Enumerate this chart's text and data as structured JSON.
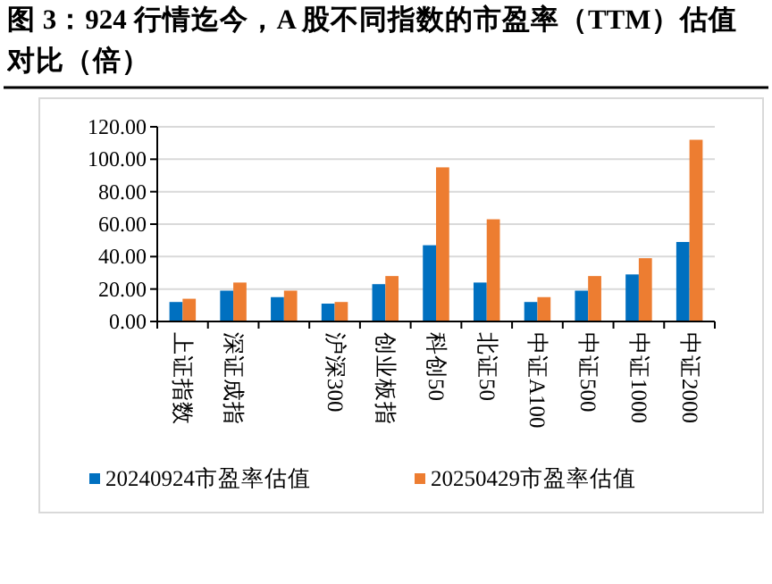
{
  "chart_data": {
    "type": "bar",
    "title": "图 3：924 行情迄今，A 股不同指数的市盈率（TTM）估值对比（倍）",
    "categories": [
      "上证指数",
      "深证成指",
      null,
      "沪深300",
      "创业板指",
      "科创50",
      "北证50",
      "中证A100",
      "中证500",
      "中证1000",
      "中证2000"
    ],
    "series": [
      {
        "name": "20240924市盈率估值",
        "color": "#0070c0",
        "values": [
          12,
          19,
          15,
          11,
          23,
          47,
          24,
          12,
          19,
          29,
          49
        ]
      },
      {
        "name": "20250429市盈率估值",
        "color": "#ed7d31",
        "values": [
          14,
          24,
          19,
          12,
          28,
          95,
          63,
          15,
          28,
          39,
          112
        ]
      }
    ],
    "ylim": [
      0,
      120
    ],
    "yticks": [
      {
        "value": 0,
        "label": "0.00"
      },
      {
        "value": 20,
        "label": "20.00"
      },
      {
        "value": 40,
        "label": "40.00"
      },
      {
        "value": 60,
        "label": "60.00"
      },
      {
        "value": 80,
        "label": "80.00"
      },
      {
        "value": 100,
        "label": "100.00"
      },
      {
        "value": 120,
        "label": "120.00"
      }
    ],
    "grid": "y",
    "legend": "bottom"
  }
}
